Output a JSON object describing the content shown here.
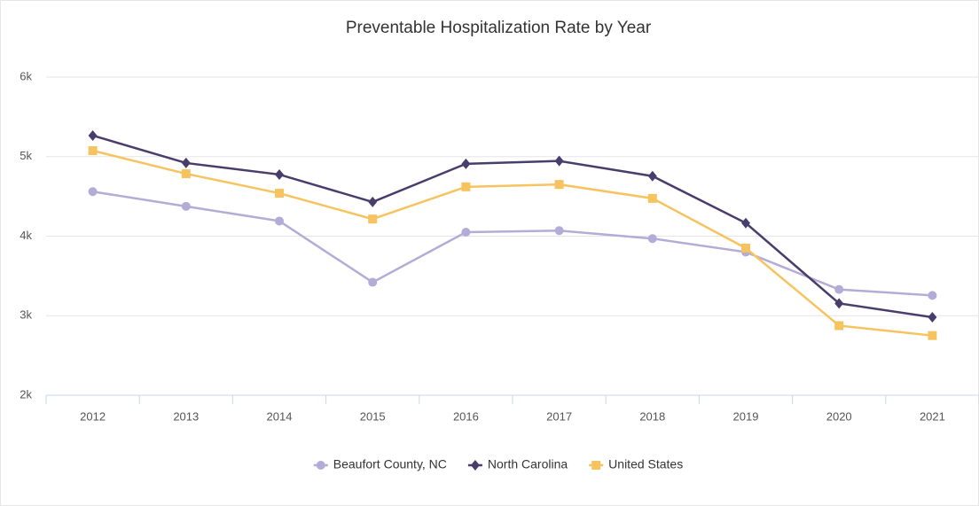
{
  "chart_data": {
    "type": "line",
    "title": "Preventable Hospitalization Rate by Year",
    "categories": [
      "2012",
      "2013",
      "2014",
      "2015",
      "2016",
      "2017",
      "2018",
      "2019",
      "2020",
      "2021"
    ],
    "series": [
      {
        "name": "Beaufort County, NC",
        "color": "#b3acd6",
        "marker": "circle",
        "values": [
          4560,
          4375,
          4190,
          3420,
          4050,
          4070,
          3970,
          3800,
          3330,
          3255
        ]
      },
      {
        "name": "North Carolina",
        "color": "#483d6b",
        "marker": "diamond",
        "values": [
          5265,
          4920,
          4775,
          4430,
          4910,
          4945,
          4755,
          4165,
          3155,
          2980
        ]
      },
      {
        "name": "United States",
        "color": "#f7c35f",
        "marker": "square",
        "values": [
          5075,
          4785,
          4540,
          4215,
          4620,
          4650,
          4475,
          3850,
          2875,
          2750
        ]
      }
    ],
    "ylim": [
      2000,
      6000
    ],
    "yticks": [
      {
        "value": 2000,
        "label": "2k"
      },
      {
        "value": 3000,
        "label": "3k"
      },
      {
        "value": 4000,
        "label": "4k"
      },
      {
        "value": 5000,
        "label": "5k"
      },
      {
        "value": 6000,
        "label": "6k"
      }
    ],
    "grid": true,
    "legend": "bottom"
  }
}
